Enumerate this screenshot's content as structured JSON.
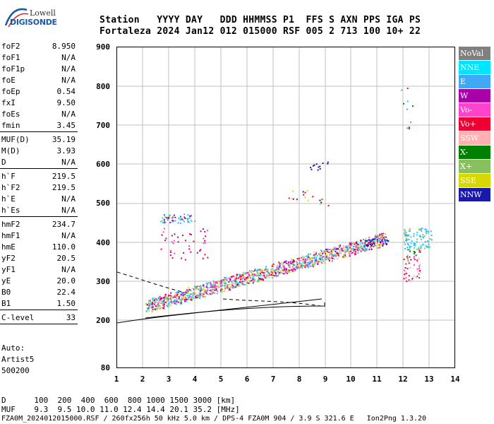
{
  "logo": {
    "line1": "Lowell",
    "line2": "DIGISONDE"
  },
  "header": {
    "labels": "Station   YYYY DAY   DDD HHMMSS P1  FFS S AXN PPS IGA PS",
    "values": "Fortaleza 2024 Jan12 012 015000 RSF 005 2 713 100 10+ 22"
  },
  "params": {
    "g1": [
      {
        "n": "foF2",
        "v": "8.950"
      },
      {
        "n": "foF1",
        "v": "N/A"
      },
      {
        "n": "foF1p",
        "v": "N/A"
      },
      {
        "n": "foE",
        "v": "N/A"
      },
      {
        "n": "foEp",
        "v": "0.54"
      },
      {
        "n": "fxI",
        "v": "9.50"
      },
      {
        "n": "foEs",
        "v": "N/A"
      },
      {
        "n": "fmin",
        "v": "3.45"
      }
    ],
    "g2": [
      {
        "n": "MUF(D)",
        "v": "35.19"
      },
      {
        "n": "M(D)",
        "v": "3.93"
      },
      {
        "n": "D",
        "v": "N/A"
      }
    ],
    "g3": [
      {
        "n": "h`F",
        "v": "219.5"
      },
      {
        "n": "h`F2",
        "v": "219.5"
      },
      {
        "n": "h`E",
        "v": "N/A"
      },
      {
        "n": "h`Es",
        "v": "N/A"
      }
    ],
    "g4": [
      {
        "n": "hmF2",
        "v": "234.7"
      },
      {
        "n": "hmF1",
        "v": "N/A"
      },
      {
        "n": "hmE",
        "v": "110.0"
      },
      {
        "n": "yF2",
        "v": "20.5"
      },
      {
        "n": "yF1",
        "v": "N/A"
      },
      {
        "n": "yE",
        "v": "20.0"
      },
      {
        "n": "B0",
        "v": "22.4"
      },
      {
        "n": "B1",
        "v": "1.50"
      }
    ],
    "g5": [
      {
        "n": "C-level",
        "v": "33"
      }
    ]
  },
  "auto": {
    "l1": "Auto:",
    "l2": "Artist5",
    "l3": "500200"
  },
  "axes": {
    "y_ticks": [
      "900",
      "800",
      "700",
      "600",
      "500",
      "400",
      "300",
      "200",
      "80"
    ],
    "x_ticks": [
      "1",
      "2",
      "3",
      "4",
      "5",
      "6",
      "7",
      "8",
      "9",
      "10",
      "11",
      "12",
      "13",
      "14"
    ]
  },
  "legend": [
    {
      "label": "NoVal",
      "bg": "#808080",
      "fg": "#ffffff"
    },
    {
      "label": "NNE",
      "bg": "#00e5ff",
      "fg": "#ffffff"
    },
    {
      "label": "E",
      "bg": "#3fa9f5",
      "fg": "#ffffff"
    },
    {
      "label": "W",
      "bg": "#aa00aa",
      "fg": "#ffffff"
    },
    {
      "label": "Vo-",
      "bg": "#ff44cc",
      "fg": "#ffffff"
    },
    {
      "label": "Vo+",
      "bg": "#ee0033",
      "fg": "#ffffff"
    },
    {
      "label": "SSW",
      "bg": "#ffb0b0",
      "fg": "#ffffff"
    },
    {
      "label": "X-",
      "bg": "#008000",
      "fg": "#ffffff"
    },
    {
      "label": "X+",
      "bg": "#88c060",
      "fg": "#ffffff"
    },
    {
      "label": "SSE",
      "bg": "#d8d800",
      "fg": "#ffffff"
    },
    {
      "label": "NNW",
      "bg": "#1a1aaa",
      "fg": "#ffffff"
    }
  ],
  "footer": {
    "d_line": "D      100  200  400  600  800 1000 1500 3000 [km]",
    "muf_line": "MUF    9.3  9.5 10.0 11.0 12.4 14.4 20.1 35.2 [MHz]",
    "file_line": "FZA0M_2024012015000.RSF / 260fx256h 50 kHz 5.0 km / DPS-4 FZA0M 904 / 3.9 S 321.6 E   Ion2Png 1.3.20"
  }
}
